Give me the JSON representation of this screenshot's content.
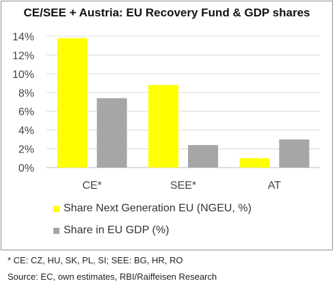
{
  "chart_data": {
    "type": "bar",
    "title": "CE/SEE + Austria: EU Recovery Fund & GDP shares",
    "categories": [
      "CE*",
      "SEE*",
      "AT"
    ],
    "series": [
      {
        "name": "Share Next Generation EU (NGEU, %)",
        "color": "#ffff00",
        "values": [
          13.8,
          8.8,
          1.0
        ]
      },
      {
        "name": "Share in EU GDP (%)",
        "color": "#a6a6a6",
        "values": [
          7.4,
          2.4,
          3.0
        ]
      }
    ],
    "ylim": [
      0,
      14
    ],
    "yticks": [
      0,
      2,
      4,
      6,
      8,
      10,
      12,
      14
    ],
    "ytick_labels": [
      "0%",
      "2%",
      "4%",
      "6%",
      "8%",
      "10%",
      "12%",
      "14%"
    ],
    "grid": true,
    "legend_position": "bottom-left"
  },
  "footnotes": {
    "definition": "* CE: CZ, HU, SK, PL, SI; SEE: BG, HR, RO",
    "source": "Source: EC, own estimates, RBI/Raiffeisen Research"
  }
}
